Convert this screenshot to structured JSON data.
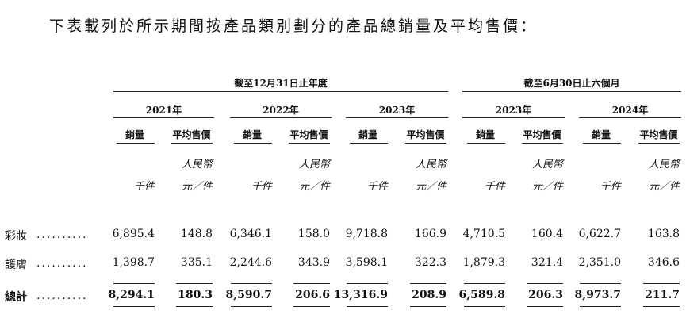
{
  "intro": "下表載列於所示期間按產品類別劃分的產品總銷量及平均售價：",
  "period_headers": [
    "截至12月31日止年度",
    "截至6月30日止六個月"
  ],
  "years": [
    "2021年",
    "2022年",
    "2023年",
    "2023年",
    "2024年"
  ],
  "col_headers": {
    "volume": "銷量",
    "price": "平均售價"
  },
  "units": {
    "volume": "千件",
    "price_line1": "人民幣",
    "price_line2": "元／件"
  },
  "rows": [
    {
      "label": "彩妝",
      "dots": "..........",
      "values": [
        "6,895.4",
        "148.8",
        "6,346.1",
        "158.0",
        "9,718.8",
        "166.9",
        "4,710.5",
        "160.4",
        "6,622.7",
        "163.8"
      ]
    },
    {
      "label": "護膚",
      "dots": "..........",
      "values": [
        "1,398.7",
        "335.1",
        "2,244.6",
        "343.9",
        "3,598.1",
        "322.3",
        "1,879.3",
        "321.4",
        "2,351.0",
        "346.6"
      ]
    },
    {
      "label": "總計",
      "dots": "..........",
      "values": [
        "8,294.1",
        "180.3",
        "8,590.7",
        "206.6",
        "13,316.9",
        "208.9",
        "6,589.8",
        "206.3",
        "8,973.7",
        "211.7"
      ]
    }
  ]
}
